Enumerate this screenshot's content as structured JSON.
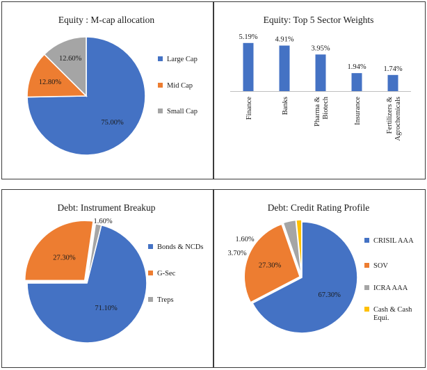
{
  "chart_data": [
    {
      "type": "pie",
      "title": "Equity : M-cap allocation",
      "legend_position": "right",
      "start_angle_deg": 0,
      "labels": [
        "Large Cap",
        "Mid Cap",
        "Small Cap"
      ],
      "values": [
        75.0,
        12.8,
        12.6
      ],
      "value_labels": [
        "75.00%",
        "12.80%",
        "12.60%"
      ],
      "colors": [
        "#4472C4",
        "#ED7D31",
        "#A5A5A5"
      ]
    },
    {
      "type": "bar",
      "title": "Equity: Top 5 Sector Weights",
      "categories": [
        [
          "Finance"
        ],
        [
          "Banks"
        ],
        [
          "Pharma &",
          "Biotech"
        ],
        [
          "Insurance"
        ],
        [
          "Fertilizers &",
          "Agrochemicals"
        ]
      ],
      "values": [
        5.19,
        4.91,
        3.95,
        1.94,
        1.74
      ],
      "value_labels": [
        "5.19%",
        "4.91%",
        "3.95%",
        "1.94%",
        "1.74%"
      ],
      "ylim": [
        0,
        6
      ],
      "grid": false,
      "color": "#4472C4"
    },
    {
      "type": "pie",
      "title": "Debt: Instrument Breakup",
      "legend_position": "right",
      "start_angle_deg": 14,
      "labels": [
        "Bonds & NCDs",
        "G-Sec",
        "Treps"
      ],
      "values": [
        71.1,
        27.3,
        1.6
      ],
      "value_labels": [
        "71.10%",
        "27.30%",
        "1.60%"
      ],
      "colors": [
        "#4472C4",
        "#ED7D31",
        "#A5A5A5"
      ]
    },
    {
      "type": "pie",
      "title": "Debt: Credit Rating Profile",
      "legend_position": "right",
      "start_angle_deg": 0,
      "labels": [
        [
          "CRISIL AAA"
        ],
        [
          "SOV"
        ],
        [
          "ICRA AAA"
        ],
        [
          "Cash & Cash",
          "Equi."
        ]
      ],
      "values": [
        67.3,
        27.3,
        3.7,
        1.6
      ],
      "value_labels": [
        "67.30%",
        "27.30%",
        "3.70%",
        "1.60%"
      ],
      "colors": [
        "#4472C4",
        "#ED7D31",
        "#A5A5A5",
        "#FFC000"
      ]
    }
  ]
}
